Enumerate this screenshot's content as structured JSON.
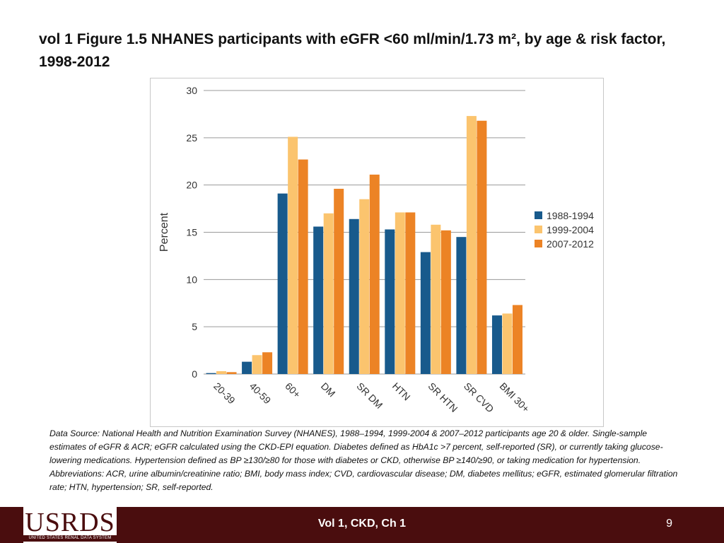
{
  "slide": {
    "title": "vol 1 Figure 1.5  NHANES participants with eGFR <60 ml/min/1.73 m², by age & risk factor, 1998-2012",
    "source_note": "Data Source: National Health and Nutrition Examination Survey (NHANES), 1988–1994, 1999-2004 & 2007–2012 participants age 20 & older. Single-sample estimates of eGFR & ACR; eGFR calculated using the CKD-EPI equation. Diabetes defined as HbA1c >7 percent, self-reported (SR), or currently taking glucose-lowering medications. Hypertension defined as BP ≥130/≥80 for those with diabetes or CKD, otherwise BP ≥140/≥90, or taking medication for hypertension. Abbreviations: ACR, urine albumin/creatinine ratio; BMI, body mass index; CVD, cardiovascular disease; DM, diabetes mellitus; eGFR, estimated glomerular filtration rate; HTN, hypertension; SR, self-reported."
  },
  "footer": {
    "logo_text": "USRDS",
    "logo_subtext": "UNITED STATES RENAL DATA SYSTEM",
    "center_text": "Vol 1, CKD, Ch 1",
    "page_number": "9",
    "background_color": "#4a0d0e"
  },
  "chart_data": {
    "type": "bar",
    "title": "",
    "xlabel": "",
    "ylabel": "Percent",
    "ylim": [
      0,
      30
    ],
    "yticks": [
      0,
      5,
      10,
      15,
      20,
      25,
      30
    ],
    "grid": true,
    "legend_position": "right",
    "categories": [
      "20-39",
      "40-59",
      "60+",
      "DM",
      "SR DM",
      "HTN",
      "SR HTN",
      "SR CVD",
      "BMI 30+"
    ],
    "series": [
      {
        "name": "1988-1994",
        "color": "#185a8c",
        "values": [
          0.1,
          1.3,
          19.1,
          15.6,
          16.4,
          15.3,
          12.9,
          14.5,
          6.2
        ]
      },
      {
        "name": "1999-2004",
        "color": "#fbc46e",
        "values": [
          0.3,
          2.0,
          25.1,
          17.0,
          18.5,
          17.1,
          15.8,
          27.3,
          6.4
        ]
      },
      {
        "name": "2007-2012",
        "color": "#ec8325",
        "values": [
          0.2,
          2.3,
          22.7,
          19.6,
          21.1,
          17.1,
          15.2,
          26.8,
          7.3
        ]
      }
    ]
  }
}
